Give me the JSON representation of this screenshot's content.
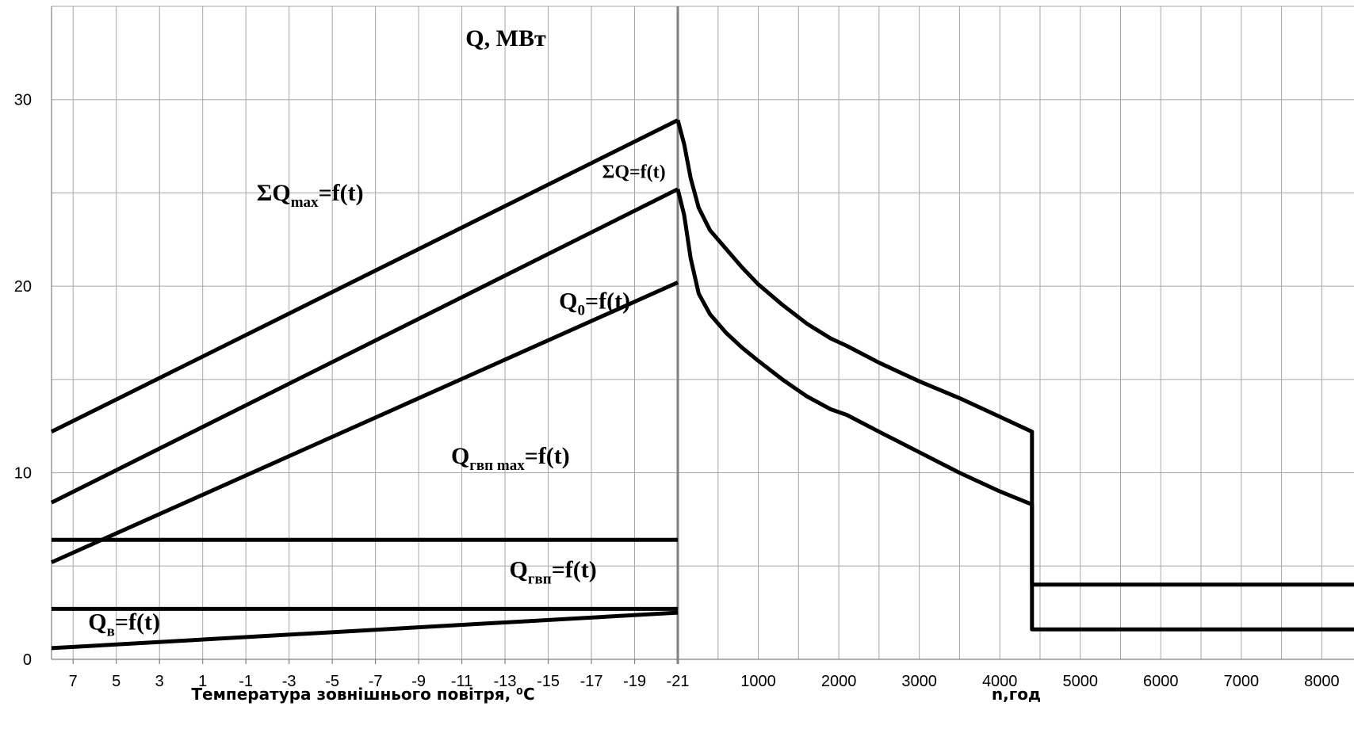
{
  "chart_data": {
    "type": "line",
    "title": "Q, МВт",
    "ylabel": "",
    "ylim": [
      0,
      35
    ],
    "yticks": [
      "0",
      "10",
      "20",
      "30"
    ],
    "grid": true,
    "left_panel": {
      "xlabel": "Температура зовнішнього повітря, ⁰C",
      "x_ticks": [
        "7",
        "5",
        "3",
        "1",
        "-1",
        "-3",
        "-5",
        "-7",
        "-9",
        "-11",
        "-13",
        "-15",
        "-17",
        "-19",
        "-21"
      ],
      "x_range": [
        8,
        -21
      ],
      "series": [
        {
          "name": "ΣQmax=f(t)",
          "x": [
            8,
            -21
          ],
          "y": [
            12.2,
            28.9
          ]
        },
        {
          "name": "ΣQ=f(t)",
          "x": [
            8,
            -21
          ],
          "y": [
            8.4,
            25.2
          ]
        },
        {
          "name": "Q0=f(t)",
          "x": [
            8,
            -21
          ],
          "y": [
            5.2,
            20.2
          ]
        },
        {
          "name": "Qгвп max=f(t)",
          "x": [
            8,
            -21
          ],
          "y": [
            6.4,
            6.4
          ]
        },
        {
          "name": "Qгвп=f(t)",
          "x": [
            8,
            -21
          ],
          "y": [
            2.7,
            2.7
          ]
        },
        {
          "name": "Qв=f(t)",
          "x": [
            8,
            -21
          ],
          "y": [
            0.6,
            2.5
          ]
        }
      ]
    },
    "right_panel": {
      "xlabel": "n,год",
      "x_ticks": [
        "1000",
        "2000",
        "3000",
        "4000",
        "5000",
        "6000",
        "7000",
        "8000"
      ],
      "x_range": [
        0,
        8400
      ],
      "series": [
        {
          "name": "",
          "x": [
            0,
            80,
            160,
            260,
            400,
            600,
            800,
            1000,
            1300,
            1600,
            1900,
            2100,
            2500,
            3000,
            3500,
            4000,
            4400,
            4400,
            8400
          ],
          "y": [
            28.9,
            27.6,
            25.8,
            24.2,
            23.0,
            22.0,
            21.0,
            20.1,
            19.0,
            18.0,
            17.2,
            16.8,
            15.9,
            14.9,
            14.0,
            13.0,
            12.2,
            4.0,
            4.0
          ]
        },
        {
          "name": "",
          "x": [
            0,
            80,
            160,
            260,
            400,
            600,
            800,
            1000,
            1300,
            1600,
            1900,
            2100,
            2500,
            3000,
            3500,
            4000,
            4400,
            4400,
            8400
          ],
          "y": [
            25.2,
            23.8,
            21.5,
            19.6,
            18.5,
            17.5,
            16.7,
            16.0,
            15.0,
            14.1,
            13.4,
            13.1,
            12.2,
            11.1,
            10.0,
            9.0,
            8.3,
            1.6,
            1.6
          ]
        }
      ]
    },
    "annotations": [
      {
        "text": "ΣQ",
        "sub": "max",
        "suffix": "=f(t)",
        "x": -1.5,
        "y": 24.6,
        "size": 30
      },
      {
        "text": "ΣQ=f(t)",
        "sub": "",
        "suffix": "",
        "x": -17.5,
        "y": 25.8,
        "size": 24
      },
      {
        "text": "Q",
        "sub": "0",
        "suffix": "=f(t)",
        "x": -15.5,
        "y": 18.8,
        "size": 30
      },
      {
        "text": "Q",
        "sub": "гвп max",
        "suffix": "=f(t)",
        "x": -10.5,
        "y": 10.5,
        "size": 30
      },
      {
        "text": "Q",
        "sub": "гвп",
        "suffix": "=f(t)",
        "x": -13.2,
        "y": 4.4,
        "size": 30
      },
      {
        "text": "Q",
        "sub": "в",
        "suffix": "=f(t)",
        "x": 6.3,
        "y": 1.6,
        "size": 30
      }
    ]
  }
}
